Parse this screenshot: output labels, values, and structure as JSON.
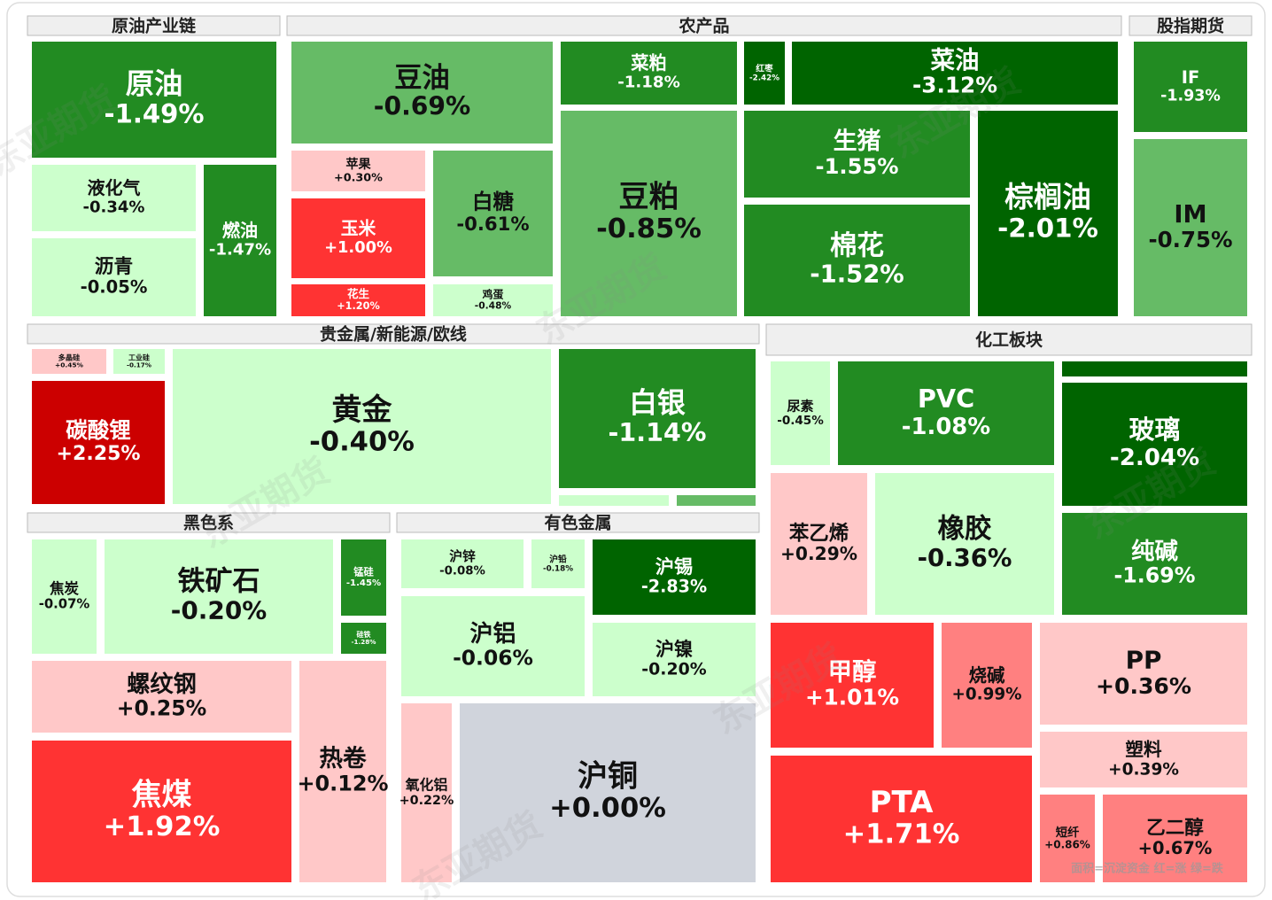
{
  "chart_data": {
    "type": "treemap",
    "legend_note": "面积=沉淀资金  红=涨  绿=跌",
    "watermark": "东亚期货",
    "groups": [
      {
        "name": "原油产业链",
        "names": [
          "原油",
          "液化气",
          "沥青",
          "燃油"
        ],
        "values": [
          -1.49,
          -0.34,
          -0.05,
          -1.47
        ],
        "value_labels": [
          "-1.49%",
          "-0.34%",
          "-0.05%",
          "-1.47%"
        ]
      },
      {
        "name": "农产品",
        "names": [
          "豆油",
          "苹果",
          "玉米",
          "花生",
          "白糖",
          "鸡蛋",
          "菜粕",
          "豆粕",
          "红枣",
          "菜油",
          "生猪",
          "棉花",
          "棕榈油"
        ],
        "values": [
          -0.69,
          0.3,
          1.0,
          1.2,
          -0.61,
          -0.48,
          -1.18,
          -0.85,
          -2.42,
          -3.12,
          -1.55,
          -1.52,
          -2.01
        ],
        "value_labels": [
          "-0.69%",
          "+0.30%",
          "+1.00%",
          "+1.20%",
          "-0.61%",
          "-0.48%",
          "-1.18%",
          "-0.85%",
          "-2.42%",
          "-3.12%",
          "-1.55%",
          "-1.52%",
          "-2.01%"
        ]
      },
      {
        "name": "股指期货",
        "names": [
          "IF",
          "IM"
        ],
        "values": [
          -1.93,
          -0.75
        ],
        "value_labels": [
          "-1.93%",
          "-0.75%"
        ]
      },
      {
        "name": "贵金属/新能源/欧线",
        "names": [
          "多晶硅",
          "工业硅",
          "碳酸锂",
          "黄金",
          "白银"
        ],
        "values": [
          0.45,
          -0.17,
          2.25,
          -0.4,
          -1.14
        ],
        "value_labels": [
          "+0.45%",
          "-0.17%",
          "+2.25%",
          "-0.40%",
          "-1.14%"
        ]
      },
      {
        "name": "化工板块",
        "names": [
          "尿素",
          "PVC",
          "玻璃",
          "苯乙烯",
          "橡胶",
          "纯碱",
          "甲醇",
          "烧碱",
          "PP",
          "塑料",
          "PTA",
          "短纤",
          "乙二醇"
        ],
        "values": [
          -0.45,
          -1.08,
          -2.04,
          0.29,
          -0.36,
          -1.69,
          1.01,
          0.99,
          0.36,
          0.39,
          1.71,
          0.86,
          0.67
        ],
        "value_labels": [
          "-0.45%",
          "-1.08%",
          "-2.04%",
          "+0.29%",
          "-0.36%",
          "-1.69%",
          "+1.01%",
          "+0.99%",
          "+0.36%",
          "+0.39%",
          "+1.71%",
          "+0.86%",
          "+0.67%"
        ]
      },
      {
        "name": "黑色系",
        "names": [
          "焦炭",
          "铁矿石",
          "锰硅",
          "硅铁",
          "螺纹钢",
          "焦煤",
          "热卷"
        ],
        "values": [
          -0.07,
          -0.2,
          -1.45,
          -1.28,
          0.25,
          1.92,
          0.12
        ],
        "value_labels": [
          "-0.07%",
          "-0.20%",
          "-1.45%",
          "-1.28%",
          "+0.25%",
          "+1.92%",
          "+0.12%"
        ]
      },
      {
        "name": "有色金属",
        "names": [
          "沪锌",
          "沪铅",
          "沪锡",
          "沪铝",
          "沪镍",
          "氧化铝",
          "沪铜"
        ],
        "values": [
          -0.08,
          -0.18,
          -2.83,
          -0.06,
          -0.2,
          0.22,
          0
        ],
        "value_labels": [
          "-0.08%",
          "-0.18%",
          "-2.83%",
          "-0.06%",
          "-0.20%",
          "+0.22%",
          "+0.00%"
        ]
      }
    ]
  }
}
